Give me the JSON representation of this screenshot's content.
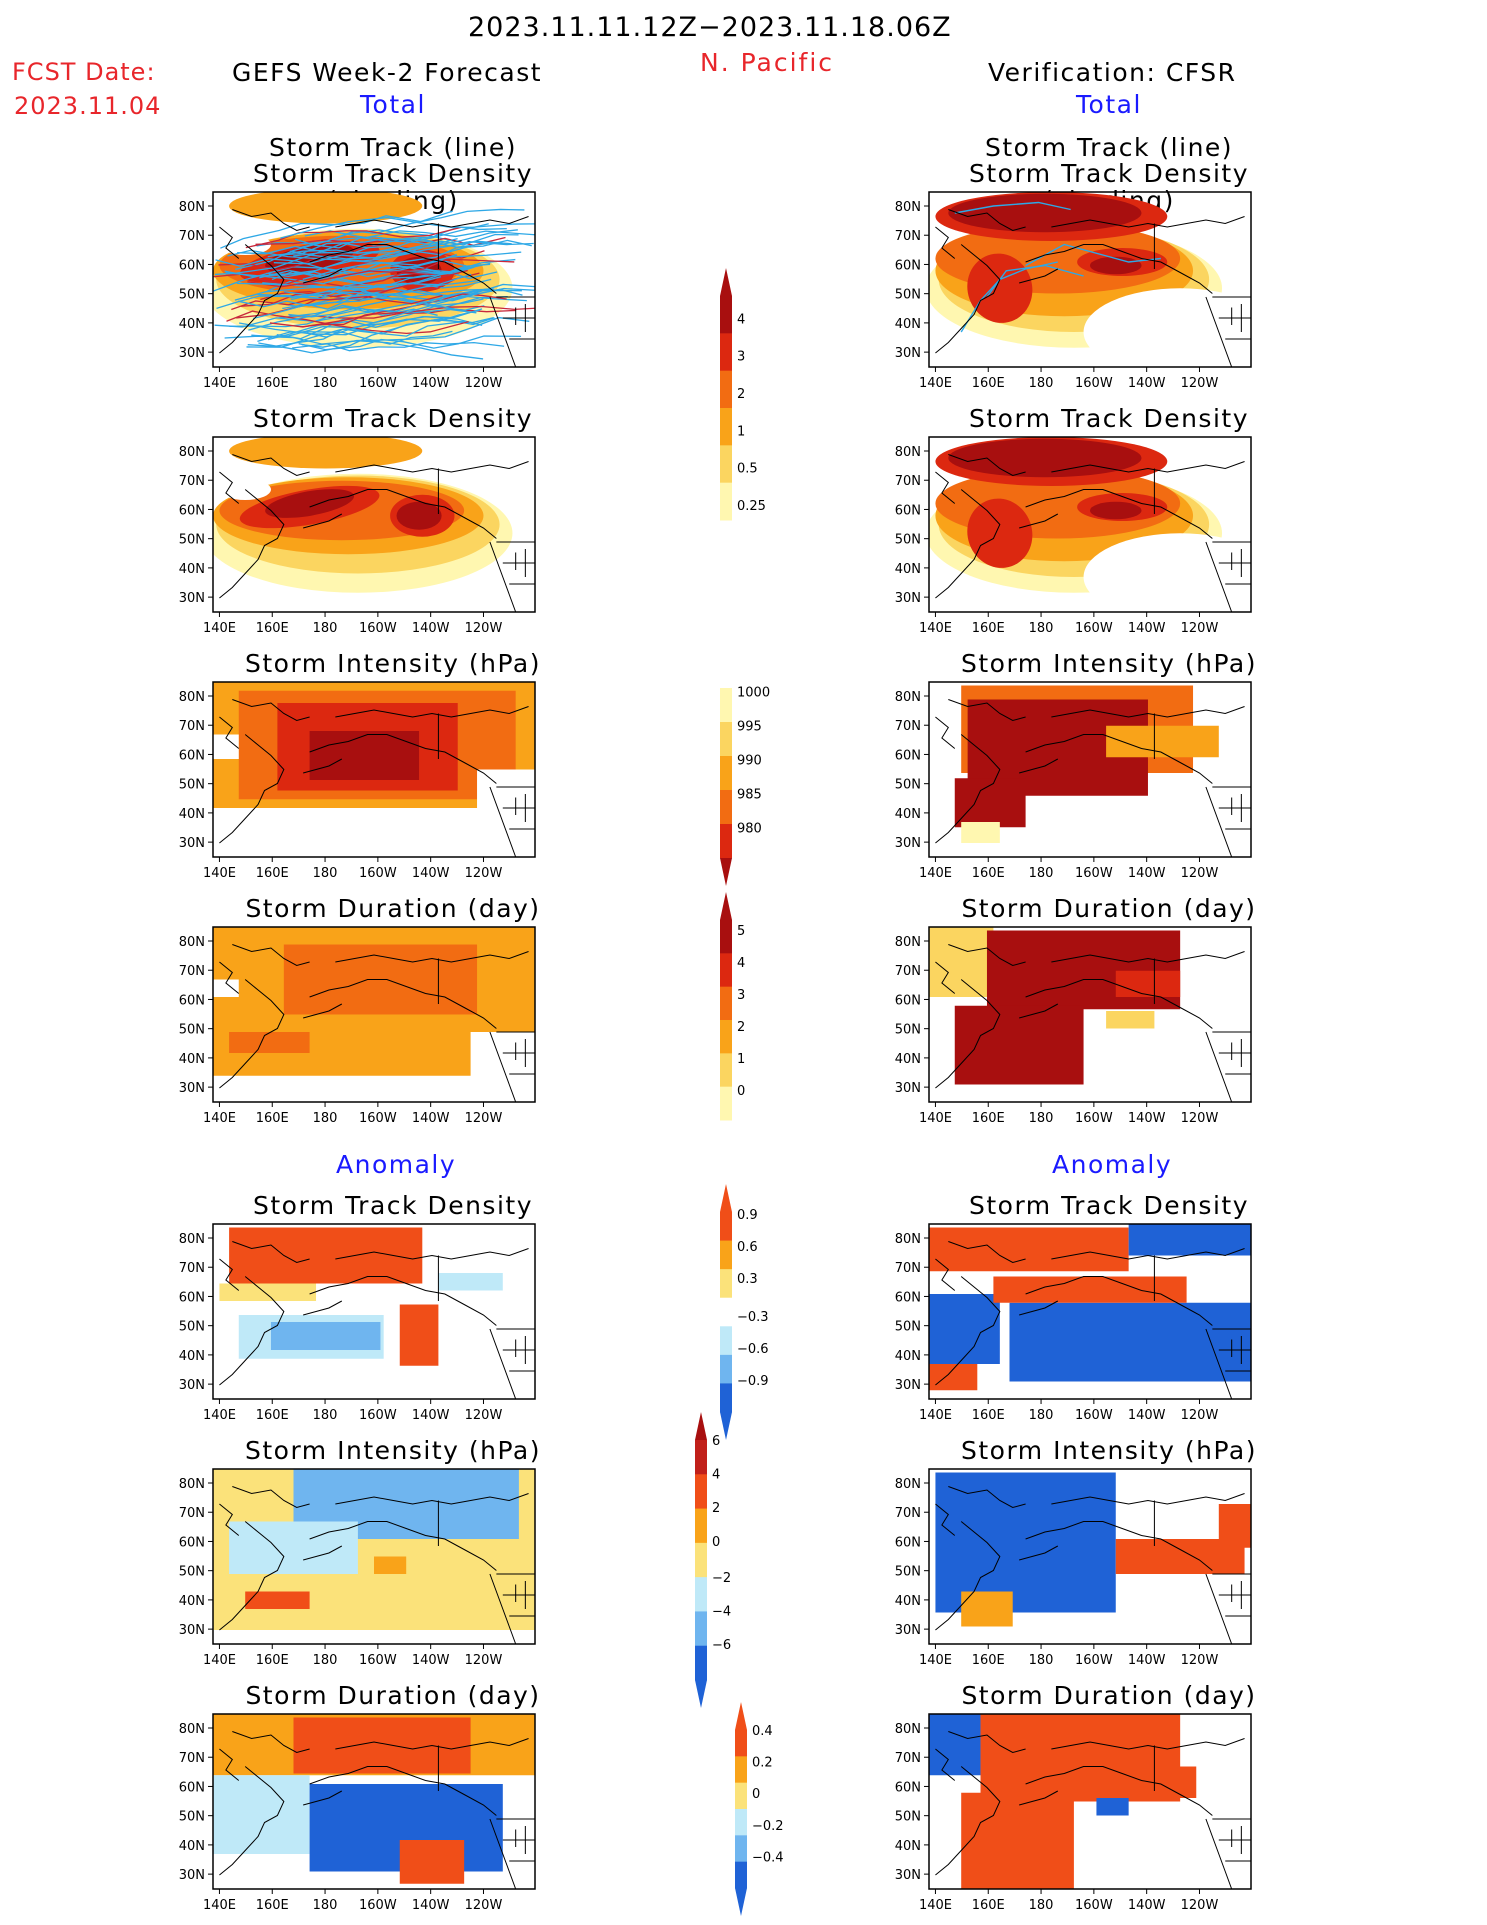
{
  "header": {
    "date_range": "2023.11.11.12Z−2023.11.18.06Z",
    "region": "N. Pacific",
    "fcst_label": "FCST Date:",
    "fcst_date": "2023.11.04",
    "left_title": "GEFS Week-2 Forecast",
    "right_title": "Verification: CFSR",
    "total_left": "Total",
    "total_right": "Total",
    "anomaly_left": "Anomaly",
    "anomaly_right": "Anomaly"
  },
  "map_axes": {
    "lon_labels": [
      "140E",
      "160E",
      "180",
      "160W",
      "140W",
      "120W"
    ],
    "lat_labels": [
      "80N",
      "70N",
      "60N",
      "50N",
      "40N",
      "30N"
    ]
  },
  "panel_titles": {
    "track_line": "Storm Track (line)",
    "track_shading": "Storm Track Density (shading)",
    "density": "Storm Track Density",
    "intensity": "Storm Intensity (hPa)",
    "duration": "Storm Duration (day)"
  },
  "colorbars": {
    "density_total": [
      "4",
      "3",
      "2",
      "1",
      "0.5",
      "0.25"
    ],
    "intensity_total": [
      "1000",
      "995",
      "990",
      "985",
      "980"
    ],
    "duration_total": [
      "5",
      "4",
      "3",
      "2",
      "1",
      "0"
    ],
    "density_anom": [
      "0.9",
      "0.6",
      "0.3",
      "−0.3",
      "−0.6",
      "−0.9"
    ],
    "intensity_anom": [
      "6",
      "4",
      "2",
      "0",
      "−2",
      "−4",
      "−6"
    ],
    "duration_anom": [
      "0.4",
      "0.2",
      "0",
      "−0.2",
      "−0.4"
    ]
  },
  "palette": {
    "warm": [
      "#fff7b0",
      "#fbd560",
      "#f9a319",
      "#f26c12",
      "#dc2810",
      "#a80f0f"
    ],
    "anom_pos": [
      "#fbe27a",
      "#f9a319",
      "#f04e18"
    ],
    "anom_neg": [
      "#bfe9f8",
      "#6fb5ef",
      "#1f62d6"
    ],
    "track_line": "#2ea8e6",
    "track_line_red": "#c8283c"
  }
}
